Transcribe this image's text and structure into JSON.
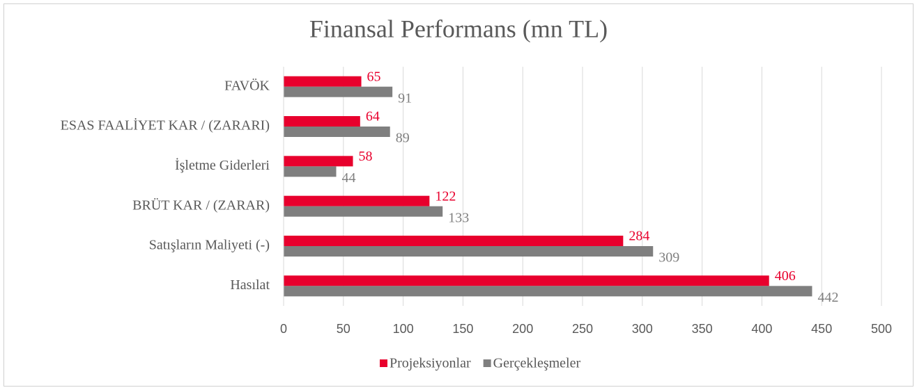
{
  "chart_data": {
    "type": "barh",
    "title": "Finansal Performans (mn TL)",
    "categories": [
      "FAVÖK",
      "ESAS FAALİYET KAR / (ZARARI)",
      "İşletme Giderleri",
      "BRÜT KAR / (ZARAR)",
      "Satışların Maliyeti (-)",
      "Hasılat"
    ],
    "series": [
      {
        "name": "Projeksiyonlar",
        "color": "#e8002d",
        "values": [
          65,
          64,
          58,
          122,
          284,
          406
        ]
      },
      {
        "name": "Gerçekleşmeler",
        "color": "#7f7f7f",
        "values": [
          91,
          89,
          44,
          133,
          309,
          442
        ]
      }
    ],
    "xlim": [
      0,
      500
    ],
    "xticks": [
      0,
      50,
      100,
      150,
      200,
      250,
      300,
      350,
      400,
      450,
      500
    ],
    "grid": true,
    "legend": "bottom"
  }
}
